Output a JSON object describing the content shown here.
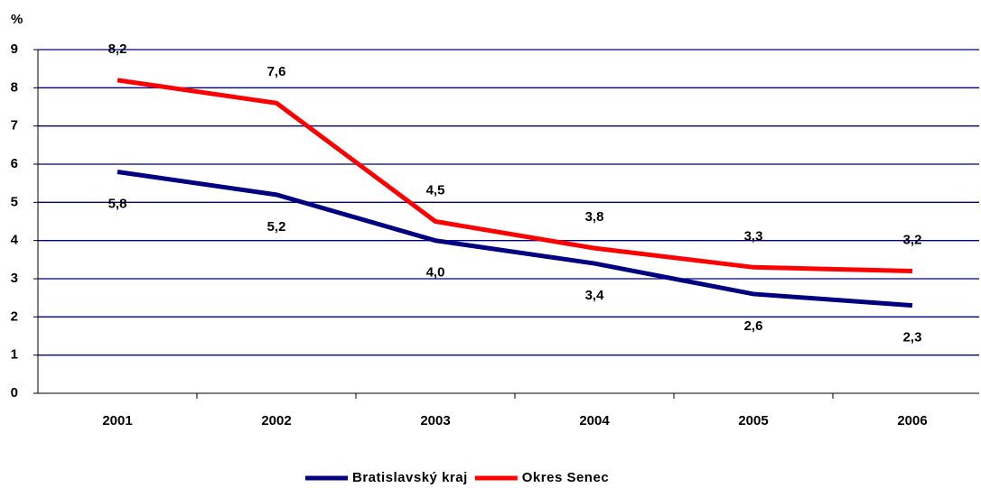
{
  "chart_data": {
    "type": "line",
    "y_label": "%",
    "categories": [
      "2001",
      "2002",
      "2003",
      "2004",
      "2005",
      "2006"
    ],
    "series": [
      {
        "name": "Bratislavský kraj",
        "color": "#000080",
        "values": [
          5.8,
          5.2,
          4.0,
          3.4,
          2.6,
          2.3
        ],
        "value_labels": [
          "5,8",
          "5,2",
          "4,0",
          "3,4",
          "2,6",
          "2,3"
        ]
      },
      {
        "name": "Okres Senec",
        "color": "#ff0000",
        "values": [
          8.2,
          7.6,
          4.5,
          3.8,
          3.3,
          3.2
        ],
        "value_labels": [
          "8,2",
          "7,6",
          "4,5",
          "3,8",
          "3,3",
          "3,2"
        ]
      }
    ],
    "ylim": [
      0,
      9
    ],
    "yticks": [
      0,
      1,
      2,
      3,
      4,
      5,
      6,
      7,
      8,
      9
    ],
    "grid": true,
    "legend": "bottom"
  }
}
